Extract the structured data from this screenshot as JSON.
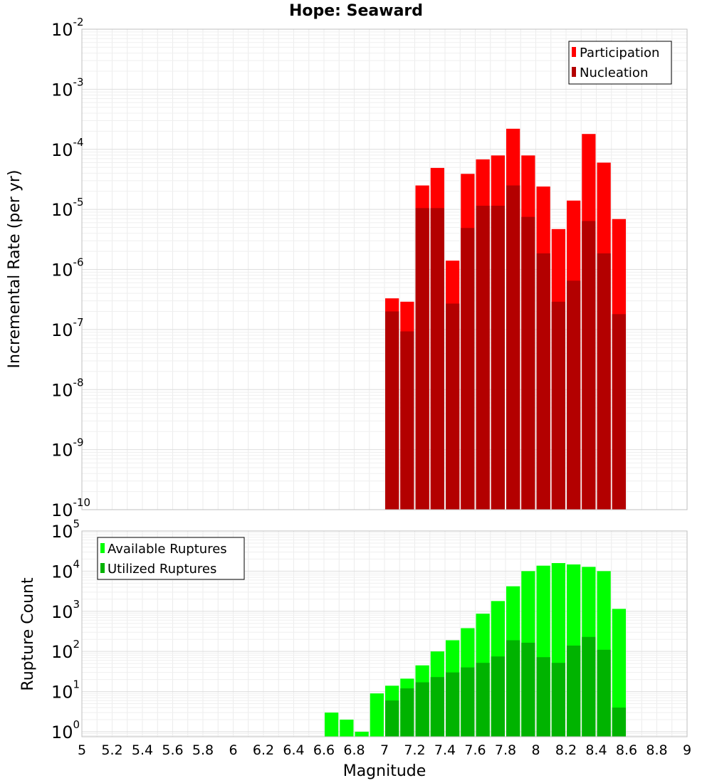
{
  "chart_data": [
    {
      "type": "bar",
      "title": "Hope: Seaward",
      "xlabel": "Magnitude",
      "ylabel": "Incremental Rate (per yr)",
      "yscale": "log",
      "xlim": [
        5,
        9
      ],
      "ylim": [
        1e-10,
        0.01
      ],
      "y_tick_base": "10",
      "y_tick_exponents": [
        "-10",
        "-9",
        "-8",
        "-7",
        "-6",
        "-5",
        "-4",
        "-3",
        "-2"
      ],
      "legend_position": "top-right",
      "categories": [
        7.0,
        7.1,
        7.2,
        7.3,
        7.4,
        7.5,
        7.6,
        7.7,
        7.8,
        7.9,
        8.0,
        8.1,
        8.2,
        8.3,
        8.4,
        8.5
      ],
      "series": [
        {
          "name": "Participation",
          "color": "#ff0000",
          "values": [
            3.3e-07,
            2.9e-07,
            2.5e-05,
            4.9e-05,
            1.4e-06,
            3.9e-05,
            6.8e-05,
            7.9e-05,
            0.00022,
            7.9e-05,
            2.4e-05,
            4.7e-06,
            1.4e-05,
            0.00018,
            6e-05,
            6.9e-06
          ]
        },
        {
          "name": "Nucleation",
          "color": "#b30000",
          "values": [
            2e-07,
            9.3e-08,
            1.05e-05,
            1.05e-05,
            2.7e-07,
            4.9e-06,
            1.15e-05,
            1.15e-05,
            2.5e-05,
            7.5e-06,
            1.85e-06,
            2.9e-07,
            6.5e-07,
            6.4e-06,
            1.85e-06,
            1.8e-07
          ]
        }
      ]
    },
    {
      "type": "bar",
      "title": "",
      "xlabel": "Magnitude",
      "ylabel": "Rupture Count",
      "yscale": "log",
      "xlim": [
        5,
        9
      ],
      "ylim": [
        0.75,
        100000.0
      ],
      "y_tick_base": "10",
      "y_tick_exponents": [
        "0",
        "1",
        "2",
        "3",
        "4",
        "5"
      ],
      "x_tick_labels": [
        "5",
        "5.2",
        "5.4",
        "5.6",
        "5.8",
        "6",
        "6.2",
        "6.4",
        "6.6",
        "6.8",
        "7",
        "7.2",
        "7.4",
        "7.6",
        "7.8",
        "8",
        "8.2",
        "8.4",
        "8.6",
        "8.8",
        "9"
      ],
      "legend_position": "top-left",
      "categories": [
        6.6,
        6.7,
        6.8,
        6.9,
        7.0,
        7.1,
        7.2,
        7.3,
        7.4,
        7.5,
        7.6,
        7.7,
        7.8,
        7.9,
        8.0,
        8.1,
        8.2,
        8.3,
        8.4,
        8.5
      ],
      "series": [
        {
          "name": "Available Ruptures",
          "color": "#00ff00",
          "values": [
            3,
            2,
            1,
            9,
            14,
            21,
            45,
            100,
            190,
            380,
            870,
            1800,
            4200,
            10000,
            13700,
            15900,
            14700,
            12800,
            10000,
            1150
          ]
        },
        {
          "name": "Utilized Ruptures",
          "color": "#00b300",
          "values": [
            0,
            0,
            0,
            0,
            6,
            12,
            17,
            23,
            30,
            40,
            52,
            75,
            190,
            165,
            72,
            52,
            140,
            230,
            110,
            4
          ]
        }
      ]
    }
  ]
}
